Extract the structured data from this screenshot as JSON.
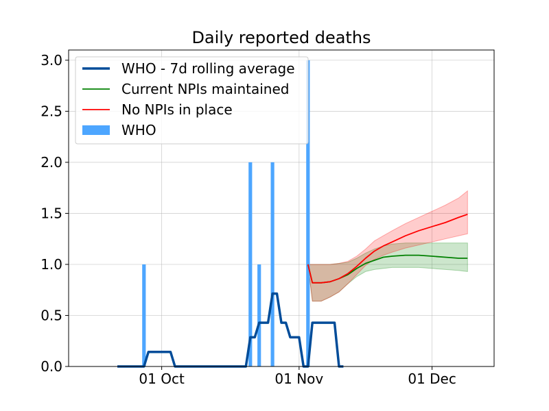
{
  "chart_data": {
    "type": "line",
    "title": "Daily reported deaths",
    "xlabel": "",
    "ylabel": "",
    "x_axis": {
      "type": "date",
      "range": [
        "2020-09-10",
        "2020-12-15"
      ],
      "ticks": [
        {
          "date": "2020-10-01",
          "label": "01 Oct"
        },
        {
          "date": "2020-11-01",
          "label": "01 Nov"
        },
        {
          "date": "2020-12-01",
          "label": "01 Dec"
        }
      ]
    },
    "y_axis": {
      "range": [
        0,
        3.1
      ],
      "ticks": [
        0.0,
        0.5,
        1.0,
        1.5,
        2.0,
        2.5,
        3.0
      ],
      "tick_labels": [
        "0.0",
        "0.5",
        "1.0",
        "1.5",
        "2.0",
        "2.5",
        "3.0"
      ]
    },
    "grid": true,
    "legend_position": "top-left",
    "bars": {
      "name": "WHO",
      "color": "#4da6ff",
      "points": [
        {
          "date": "2020-09-27",
          "value": 1
        },
        {
          "date": "2020-10-21",
          "value": 2
        },
        {
          "date": "2020-10-23",
          "value": 1
        },
        {
          "date": "2020-10-26",
          "value": 2
        },
        {
          "date": "2020-11-03",
          "value": 3
        }
      ]
    },
    "series": [
      {
        "name": "WHO - 7d rolling average",
        "color": "#004c99",
        "style": "thick",
        "points": [
          [
            "2020-09-21",
            0
          ],
          [
            "2020-09-27",
            0
          ],
          [
            "2020-09-28",
            0.143
          ],
          [
            "2020-10-03",
            0.143
          ],
          [
            "2020-10-04",
            0
          ],
          [
            "2020-10-20",
            0
          ],
          [
            "2020-10-21",
            0.286
          ],
          [
            "2020-10-22",
            0.286
          ],
          [
            "2020-10-23",
            0.429
          ],
          [
            "2020-10-25",
            0.429
          ],
          [
            "2020-10-26",
            0.714
          ],
          [
            "2020-10-27",
            0.714
          ],
          [
            "2020-10-28",
            0.429
          ],
          [
            "2020-10-29",
            0.429
          ],
          [
            "2020-10-30",
            0.286
          ],
          [
            "2020-11-01",
            0.286
          ],
          [
            "2020-11-02",
            0
          ],
          [
            "2020-11-03",
            0
          ],
          [
            "2020-11-04",
            0.429
          ],
          [
            "2020-11-09",
            0.429
          ],
          [
            "2020-11-10",
            0
          ],
          [
            "2020-11-11",
            0
          ]
        ]
      },
      {
        "name": "Current NPIs maintained",
        "color": "#008000",
        "band_color": "#008000",
        "points": [
          [
            "2020-11-03",
            1.0
          ],
          [
            "2020-11-04",
            0.82
          ],
          [
            "2020-11-06",
            0.82
          ],
          [
            "2020-11-08",
            0.83
          ],
          [
            "2020-11-10",
            0.86
          ],
          [
            "2020-11-12",
            0.9
          ],
          [
            "2020-11-14",
            0.96
          ],
          [
            "2020-11-16",
            1.01
          ],
          [
            "2020-11-18",
            1.04
          ],
          [
            "2020-11-20",
            1.07
          ],
          [
            "2020-11-22",
            1.08
          ],
          [
            "2020-11-25",
            1.09
          ],
          [
            "2020-11-28",
            1.09
          ],
          [
            "2020-12-01",
            1.08
          ],
          [
            "2020-12-04",
            1.07
          ],
          [
            "2020-12-07",
            1.06
          ],
          [
            "2020-12-09",
            1.06
          ]
        ],
        "lower": [
          [
            "2020-11-03",
            1.0
          ],
          [
            "2020-11-04",
            0.64
          ],
          [
            "2020-11-06",
            0.64
          ],
          [
            "2020-11-08",
            0.68
          ],
          [
            "2020-11-10",
            0.73
          ],
          [
            "2020-11-12",
            0.81
          ],
          [
            "2020-11-14",
            0.88
          ],
          [
            "2020-11-16",
            0.93
          ],
          [
            "2020-11-18",
            0.95
          ],
          [
            "2020-11-20",
            0.96
          ],
          [
            "2020-11-22",
            0.97
          ],
          [
            "2020-11-25",
            0.97
          ],
          [
            "2020-11-28",
            0.97
          ],
          [
            "2020-12-01",
            0.96
          ],
          [
            "2020-12-04",
            0.95
          ],
          [
            "2020-12-07",
            0.94
          ],
          [
            "2020-12-09",
            0.93
          ]
        ],
        "upper": [
          [
            "2020-11-03",
            1.0
          ],
          [
            "2020-11-04",
            1.0
          ],
          [
            "2020-11-06",
            1.0
          ],
          [
            "2020-11-08",
            1.0
          ],
          [
            "2020-11-10",
            1.01
          ],
          [
            "2020-11-12",
            1.02
          ],
          [
            "2020-11-14",
            1.06
          ],
          [
            "2020-11-16",
            1.11
          ],
          [
            "2020-11-18",
            1.15
          ],
          [
            "2020-11-20",
            1.18
          ],
          [
            "2020-11-22",
            1.2
          ],
          [
            "2020-11-25",
            1.21
          ],
          [
            "2020-11-28",
            1.21
          ],
          [
            "2020-12-01",
            1.21
          ],
          [
            "2020-12-04",
            1.21
          ],
          [
            "2020-12-07",
            1.21
          ],
          [
            "2020-12-09",
            1.21
          ]
        ]
      },
      {
        "name": "No NPIs in place",
        "color": "#ff0000",
        "band_color": "#ff0000",
        "points": [
          [
            "2020-11-03",
            1.0
          ],
          [
            "2020-11-04",
            0.82
          ],
          [
            "2020-11-06",
            0.82
          ],
          [
            "2020-11-08",
            0.83
          ],
          [
            "2020-11-10",
            0.86
          ],
          [
            "2020-11-12",
            0.91
          ],
          [
            "2020-11-14",
            0.98
          ],
          [
            "2020-11-16",
            1.06
          ],
          [
            "2020-11-18",
            1.13
          ],
          [
            "2020-11-20",
            1.18
          ],
          [
            "2020-11-22",
            1.22
          ],
          [
            "2020-11-25",
            1.28
          ],
          [
            "2020-11-28",
            1.33
          ],
          [
            "2020-12-01",
            1.37
          ],
          [
            "2020-12-04",
            1.41
          ],
          [
            "2020-12-07",
            1.46
          ],
          [
            "2020-12-09",
            1.49
          ]
        ],
        "lower": [
          [
            "2020-11-03",
            1.0
          ],
          [
            "2020-11-04",
            0.64
          ],
          [
            "2020-11-06",
            0.64
          ],
          [
            "2020-11-08",
            0.68
          ],
          [
            "2020-11-10",
            0.73
          ],
          [
            "2020-11-12",
            0.81
          ],
          [
            "2020-11-14",
            0.9
          ],
          [
            "2020-11-16",
            0.99
          ],
          [
            "2020-11-18",
            1.05
          ],
          [
            "2020-11-20",
            1.09
          ],
          [
            "2020-11-22",
            1.12
          ],
          [
            "2020-11-25",
            1.16
          ],
          [
            "2020-11-28",
            1.19
          ],
          [
            "2020-12-01",
            1.22
          ],
          [
            "2020-12-04",
            1.25
          ],
          [
            "2020-12-07",
            1.28
          ],
          [
            "2020-12-09",
            1.3
          ]
        ],
        "upper": [
          [
            "2020-11-03",
            1.0
          ],
          [
            "2020-11-04",
            1.0
          ],
          [
            "2020-11-06",
            1.0
          ],
          [
            "2020-11-08",
            1.0
          ],
          [
            "2020-11-10",
            1.01
          ],
          [
            "2020-11-12",
            1.03
          ],
          [
            "2020-11-14",
            1.08
          ],
          [
            "2020-11-16",
            1.15
          ],
          [
            "2020-11-18",
            1.23
          ],
          [
            "2020-11-20",
            1.28
          ],
          [
            "2020-11-22",
            1.33
          ],
          [
            "2020-11-25",
            1.4
          ],
          [
            "2020-11-28",
            1.46
          ],
          [
            "2020-12-01",
            1.52
          ],
          [
            "2020-12-04",
            1.58
          ],
          [
            "2020-12-07",
            1.65
          ],
          [
            "2020-12-09",
            1.72
          ]
        ]
      }
    ],
    "legend": [
      {
        "label": "WHO - 7d rolling average",
        "kind": "line-thick",
        "color": "#004c99"
      },
      {
        "label": "Current NPIs maintained",
        "kind": "line",
        "color": "#008000"
      },
      {
        "label": "No NPIs in place",
        "kind": "line",
        "color": "#ff0000"
      },
      {
        "label": "WHO",
        "kind": "patch",
        "color": "#4da6ff"
      }
    ]
  }
}
